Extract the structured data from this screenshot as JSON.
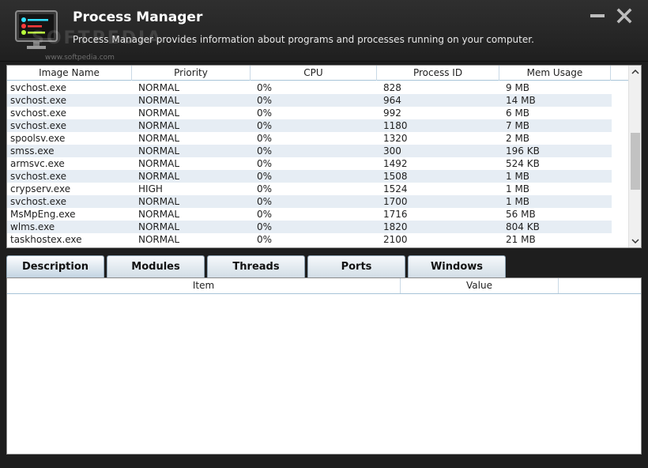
{
  "app": {
    "title": "Process Manager",
    "description": "Process Manager provides information about programs and processes running on your computer.",
    "watermark": "SOFTPEDIA",
    "watermark_url": "www.softpedia.com"
  },
  "process_table": {
    "columns": [
      "Image Name",
      "Priority",
      "CPU",
      "Process ID",
      "Mem Usage"
    ],
    "rows": [
      [
        "svchost.exe",
        "NORMAL",
        "0%",
        "828",
        "9 MB"
      ],
      [
        "svchost.exe",
        "NORMAL",
        "0%",
        "964",
        "14 MB"
      ],
      [
        "svchost.exe",
        "NORMAL",
        "0%",
        "992",
        "6 MB"
      ],
      [
        "svchost.exe",
        "NORMAL",
        "0%",
        "1180",
        "7 MB"
      ],
      [
        "spoolsv.exe",
        "NORMAL",
        "0%",
        "1320",
        "2 MB"
      ],
      [
        "smss.exe",
        "NORMAL",
        "0%",
        "300",
        "196 KB"
      ],
      [
        "armsvc.exe",
        "NORMAL",
        "0%",
        "1492",
        "524 KB"
      ],
      [
        "svchost.exe",
        "NORMAL",
        "0%",
        "1508",
        "1 MB"
      ],
      [
        "crypserv.exe",
        "HIGH",
        "0%",
        "1524",
        "1 MB"
      ],
      [
        "svchost.exe",
        "NORMAL",
        "0%",
        "1700",
        "1 MB"
      ],
      [
        "MsMpEng.exe",
        "NORMAL",
        "0%",
        "1716",
        "56 MB"
      ],
      [
        "wlms.exe",
        "NORMAL",
        "0%",
        "1820",
        "804 KB"
      ],
      [
        "taskhostex.exe",
        "NORMAL",
        "0%",
        "2100",
        "21 MB"
      ]
    ]
  },
  "tabs": [
    {
      "label": "Description",
      "active": true
    },
    {
      "label": "Modules",
      "active": false
    },
    {
      "label": "Threads",
      "active": false
    },
    {
      "label": "Ports",
      "active": false
    },
    {
      "label": "Windows",
      "active": false
    }
  ],
  "detail_table": {
    "columns": [
      "Item",
      "Value"
    ]
  },
  "icons": {
    "app": "monitor-icon",
    "minimize": "minimize-icon",
    "close": "close-icon",
    "scroll_up": "chevron-up-icon",
    "scroll_down": "chevron-down-icon"
  },
  "colors": {
    "titlebar": "#2a2a2a",
    "row_alt": "#e6edf4",
    "tab_gradient_bottom": "#d2dde6"
  }
}
